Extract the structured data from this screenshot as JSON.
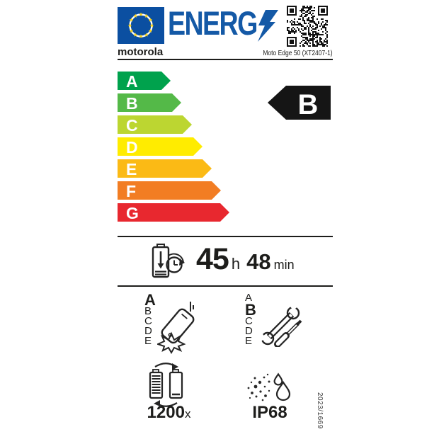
{
  "header": {
    "logo_text": "ENERG",
    "brand": "motorola",
    "model": "Moto Edge 50 (XT2407-1)"
  },
  "colors": {
    "eu_flag_blue": "#0b4fa1",
    "energ_blue": "#1459a6",
    "star_yellow": "#ffd617",
    "indicator_black": "#151515",
    "text_dark": "#1d1d1b"
  },
  "energy_scale": {
    "classes": [
      {
        "label": "A",
        "color": "#00a24d"
      },
      {
        "label": "B",
        "color": "#54b948"
      },
      {
        "label": "C",
        "color": "#bcd631"
      },
      {
        "label": "D",
        "color": "#ffec00"
      },
      {
        "label": "E",
        "color": "#fbba15"
      },
      {
        "label": "F",
        "color": "#f27d23"
      },
      {
        "label": "G",
        "color": "#e8282f"
      }
    ],
    "rating": "B"
  },
  "battery_life": {
    "hours": "45",
    "hours_unit": "h",
    "minutes": "48",
    "minutes_unit": "min"
  },
  "drop_resistance": {
    "scale": [
      "A",
      "B",
      "C",
      "D",
      "E"
    ],
    "rating": "A"
  },
  "repairability": {
    "scale": [
      "A",
      "B",
      "C",
      "D",
      "E"
    ],
    "rating": "B"
  },
  "battery_endurance": {
    "value": "1200",
    "unit": "x"
  },
  "ingress_protection": {
    "value": "IP68"
  },
  "regulation_number": "2023/1669"
}
